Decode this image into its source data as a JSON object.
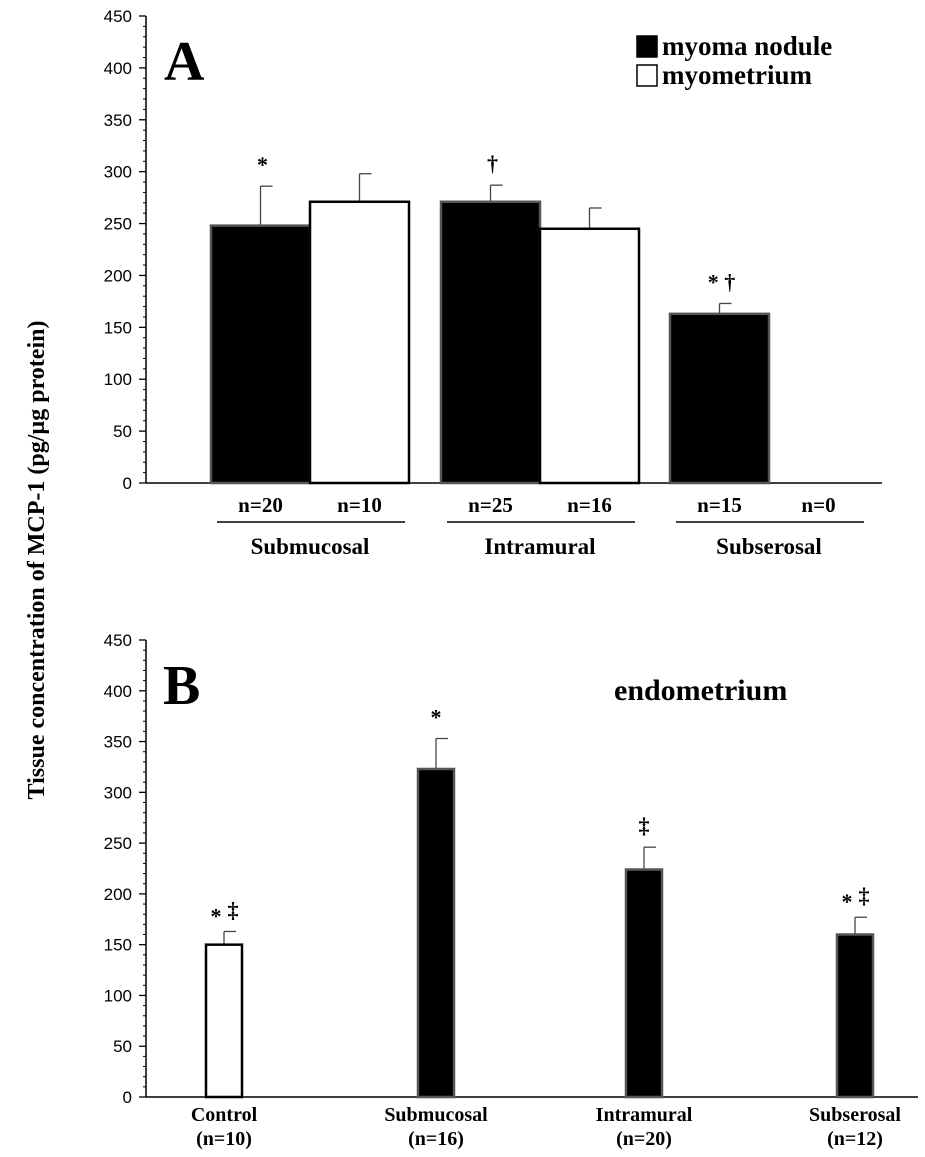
{
  "ylabel": "Tissue concentration of MCP-1 (pg/µg protein)",
  "chart_data": [
    {
      "panel": "A",
      "type": "bar",
      "ylim": [
        0,
        450
      ],
      "yticks": [
        0,
        50,
        100,
        150,
        200,
        250,
        300,
        350,
        400,
        450
      ],
      "legend": [
        {
          "label": "myoma nodule",
          "fill": "#000000"
        },
        {
          "label": "myometrium",
          "fill": "#ffffff"
        }
      ],
      "groups": [
        {
          "label": "Submucosal",
          "bars": [
            {
              "series": "myoma nodule",
              "value": 248,
              "error": 38,
              "n": "n=20",
              "mark": "*"
            },
            {
              "series": "myometrium",
              "value": 271,
              "error": 27,
              "n": "n=10",
              "mark": ""
            }
          ]
        },
        {
          "label": "Intramural",
          "bars": [
            {
              "series": "myoma nodule",
              "value": 271,
              "error": 16,
              "n": "n=25",
              "mark": "†"
            },
            {
              "series": "myometrium",
              "value": 245,
              "error": 20,
              "n": "n=16",
              "mark": ""
            }
          ]
        },
        {
          "label": "Subserosal",
          "bars": [
            {
              "series": "myoma nodule",
              "value": 163,
              "error": 10,
              "n": "n=15",
              "mark": "* †"
            },
            {
              "series": "myometrium",
              "value": null,
              "error": null,
              "n": "n=0",
              "mark": ""
            }
          ]
        }
      ]
    },
    {
      "panel": "B",
      "type": "bar",
      "series_label": "endometrium",
      "ylim": [
        0,
        450
      ],
      "yticks": [
        0,
        50,
        100,
        150,
        200,
        250,
        300,
        350,
        400,
        450
      ],
      "bars": [
        {
          "category": "Control",
          "n": "(n=10)",
          "value": 150,
          "error": 13,
          "fill": "#ffffff",
          "mark_star": "*",
          "mark_other": "‡"
        },
        {
          "category": "Submucosal",
          "n": "(n=16)",
          "value": 323,
          "error": 30,
          "fill": "#000000",
          "mark_star": "*",
          "mark_other": ""
        },
        {
          "category": "Intramural",
          "n": "(n=20)",
          "value": 224,
          "error": 22,
          "fill": "#000000",
          "mark_star": "",
          "mark_other": "‡"
        },
        {
          "category": "Subserosal",
          "n": "(n=12)",
          "value": 160,
          "error": 17,
          "fill": "#000000",
          "mark_star": "*",
          "mark_other": "‡"
        }
      ]
    }
  ]
}
